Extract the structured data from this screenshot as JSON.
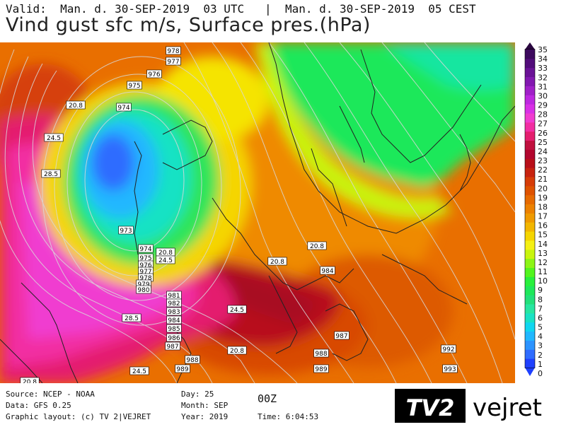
{
  "header": {
    "valid_line": "Valid:  Man. d. 30-SEP-2019  03 UTC   |  Man. d. 30-SEP-2019  05 CEST",
    "title": "Vind gust sfc m/s, Surface pres.(hPa)"
  },
  "colors": {
    "scale": [
      "#1e40ff",
      "#2f6cff",
      "#2b93ff",
      "#20b7ff",
      "#10d6f0",
      "#19e2c4",
      "#27e6a0",
      "#22e07a",
      "#1ee85a",
      "#28f03c",
      "#52f51e",
      "#8cf516",
      "#c8f50e",
      "#f5f014",
      "#f5d500",
      "#f2b600",
      "#ef9a00",
      "#ec8100",
      "#e66a00",
      "#de5200",
      "#d63c08",
      "#c72310",
      "#b80f1a",
      "#b2062e",
      "#c0103e",
      "#e41e6e",
      "#f22ea2",
      "#f03cd0",
      "#d830e6",
      "#bd28e0",
      "#a020c8",
      "#8218b0",
      "#6a1296",
      "#520c7a",
      "#3d0a5e",
      "#2a0640"
    ]
  },
  "colorbar": {
    "ticks": [
      "35",
      "34",
      "33",
      "32",
      "31",
      "30",
      "29",
      "28",
      "27",
      "26",
      "25",
      "24",
      "23",
      "22",
      "21",
      "20",
      "19",
      "18",
      "17",
      "16",
      "15",
      "14",
      "13",
      "12",
      "11",
      "10",
      "9",
      "8",
      "7",
      "6",
      "5",
      "4",
      "3",
      "2",
      "1",
      "0"
    ]
  },
  "map": {
    "pressure_labels": [
      {
        "text": "978"
      },
      {
        "text": "977"
      },
      {
        "text": "976"
      },
      {
        "text": "975"
      },
      {
        "text": "974"
      },
      {
        "text": "973"
      },
      {
        "text": "974"
      },
      {
        "text": "975"
      },
      {
        "text": "976"
      },
      {
        "text": "977"
      },
      {
        "text": "978"
      },
      {
        "text": "979"
      },
      {
        "text": "980"
      },
      {
        "text": "981"
      },
      {
        "text": "982"
      },
      {
        "text": "983"
      },
      {
        "text": "984"
      },
      {
        "text": "985"
      },
      {
        "text": "986"
      },
      {
        "text": "987"
      },
      {
        "text": "988"
      },
      {
        "text": "989"
      },
      {
        "text": "984"
      },
      {
        "text": "987"
      },
      {
        "text": "988"
      },
      {
        "text": "989"
      },
      {
        "text": "992"
      },
      {
        "text": "993"
      }
    ],
    "gust_labels": [
      {
        "text": "20.8"
      },
      {
        "text": "24.5"
      },
      {
        "text": "28.5"
      },
      {
        "text": "20.8"
      },
      {
        "text": "24.5"
      },
      {
        "text": "20.8"
      },
      {
        "text": "20.8"
      },
      {
        "text": "24.5"
      },
      {
        "text": "28.5"
      },
      {
        "text": "20.8"
      },
      {
        "text": "24.5"
      },
      {
        "text": "20.8"
      }
    ]
  },
  "footer": {
    "source": "Source: NCEP - NOAA",
    "data": "Data: GFS 0.25",
    "layout": "Graphic layout: (c) TV 2|VEJRET",
    "day": "Day: 25",
    "month": "Month: SEP",
    "year": "Year: 2019",
    "run": "00Z",
    "time": "Time: 6:04:53"
  },
  "logo": {
    "mark": "TV2",
    "text": "vejret"
  }
}
